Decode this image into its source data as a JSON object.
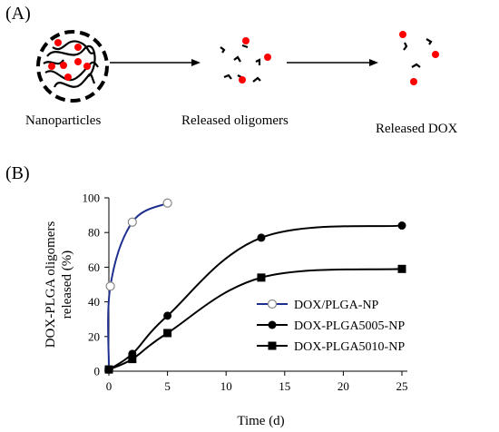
{
  "panel_a": {
    "label": "(A)",
    "steps": [
      {
        "label": "Nanoparticles"
      },
      {
        "label": "Released oligomers"
      },
      {
        "label": "Released DOX"
      }
    ]
  },
  "panel_b": {
    "label": "(B)"
  },
  "colors": {
    "dox_dot": "#ff0000",
    "series_blue": "#1f2f8f",
    "ink": "#000000"
  },
  "chart_data": {
    "type": "line",
    "xlabel": "Time (d)",
    "ylabel_lines": [
      "DOX-PLGA oligomers",
      "released (%)"
    ],
    "xlim": [
      0,
      25
    ],
    "ylim": [
      0,
      100
    ],
    "xticks": [
      0,
      5,
      10,
      15,
      20,
      25
    ],
    "yticks": [
      0,
      20,
      40,
      60,
      80,
      100
    ],
    "grid": false,
    "legend_position": "center-right",
    "series": [
      {
        "name": "DOX/PLGA-NP",
        "marker": "open-circle",
        "color": "#1f2f8f",
        "x": [
          0,
          0.125,
          2,
          5
        ],
        "y": [
          1,
          49,
          86,
          97
        ]
      },
      {
        "name": "DOX-PLGA5005-NP",
        "marker": "filled-circle",
        "color": "#000000",
        "x": [
          0,
          2,
          5,
          13,
          25
        ],
        "y": [
          1,
          10,
          32,
          77,
          84
        ]
      },
      {
        "name": "DOX-PLGA5010-NP",
        "marker": "filled-square",
        "color": "#000000",
        "x": [
          0,
          2,
          5,
          13,
          25
        ],
        "y": [
          1,
          7,
          22,
          54,
          59
        ]
      }
    ]
  }
}
